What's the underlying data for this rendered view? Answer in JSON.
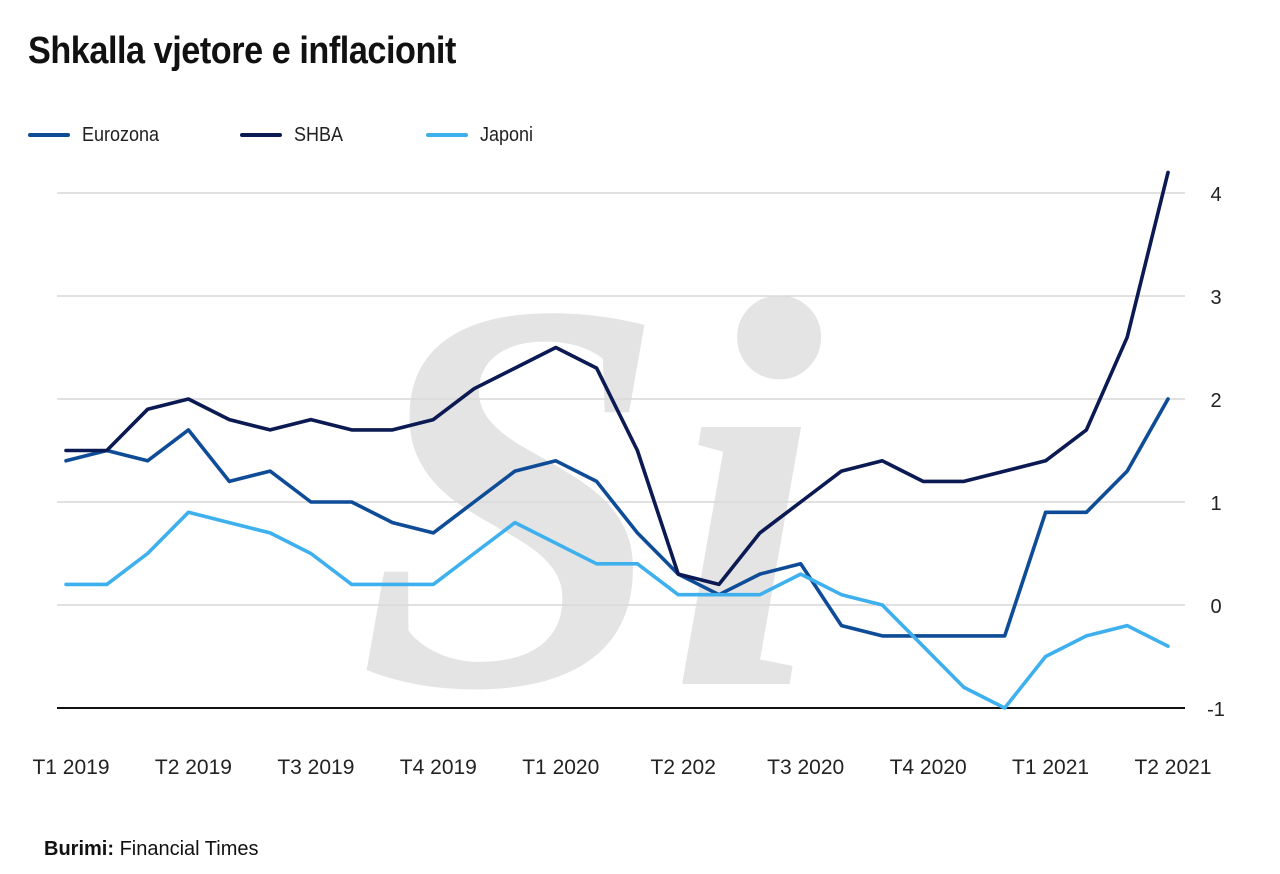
{
  "title": "Shkalla vjetore e inflacionit",
  "source": {
    "label": "Burimi:",
    "text": "Financial Times"
  },
  "legend": [
    {
      "name": "Eurozona",
      "color": "#0f4c97"
    },
    {
      "name": "SHBA",
      "color": "#0b1a52"
    },
    {
      "name": "Japoni",
      "color": "#3eb0ee"
    }
  ],
  "watermark": "Si",
  "chart_data": {
    "type": "line",
    "title": "Shkalla vjetore e inflacionit",
    "xlabel": "",
    "ylabel": "",
    "ylim": [
      -1,
      4
    ],
    "yticks": [
      "4",
      "3",
      "2",
      "1",
      "0",
      "-1"
    ],
    "ytick_values": [
      4,
      3,
      2,
      1,
      0,
      -1
    ],
    "grid": true,
    "legend_position": "top-left",
    "x_tick_labels": [
      "T1 2019",
      "T2 2019",
      "T3 2019",
      "T4 2019",
      "T1 2020",
      "T2 202",
      "T3 2020",
      "T4 2020",
      "T1 2021",
      "T2 2021"
    ],
    "x_tick_indices": [
      0,
      3,
      6,
      9,
      12,
      15,
      18,
      21,
      24,
      27
    ],
    "n_points": 28,
    "series": [
      {
        "name": "Eurozona",
        "color": "#0f4c97",
        "values": [
          1.4,
          1.5,
          1.4,
          1.7,
          1.2,
          1.3,
          1.0,
          1.0,
          0.8,
          0.7,
          1.0,
          1.3,
          1.4,
          1.2,
          0.7,
          0.3,
          0.1,
          0.3,
          0.4,
          -0.2,
          -0.3,
          -0.3,
          -0.3,
          -0.3,
          0.9,
          0.9,
          1.3,
          2.0
        ]
      },
      {
        "name": "SHBA",
        "color": "#0b1a52",
        "values": [
          1.5,
          1.5,
          1.9,
          2.0,
          1.8,
          1.7,
          1.8,
          1.7,
          1.7,
          1.8,
          2.1,
          2.3,
          2.5,
          2.3,
          1.5,
          0.3,
          0.2,
          0.7,
          1.0,
          1.3,
          1.4,
          1.2,
          1.2,
          1.3,
          1.4,
          1.7,
          2.6,
          4.2
        ]
      },
      {
        "name": "Japoni",
        "color": "#3eb0ee",
        "values": [
          0.2,
          0.2,
          0.5,
          0.9,
          0.8,
          0.7,
          0.5,
          0.2,
          0.2,
          0.2,
          0.5,
          0.8,
          0.6,
          0.4,
          0.4,
          0.1,
          0.1,
          0.1,
          0.3,
          0.1,
          0.0,
          -0.4,
          -0.8,
          -1.0,
          -0.5,
          -0.3,
          -0.2,
          -0.4
        ]
      }
    ]
  }
}
